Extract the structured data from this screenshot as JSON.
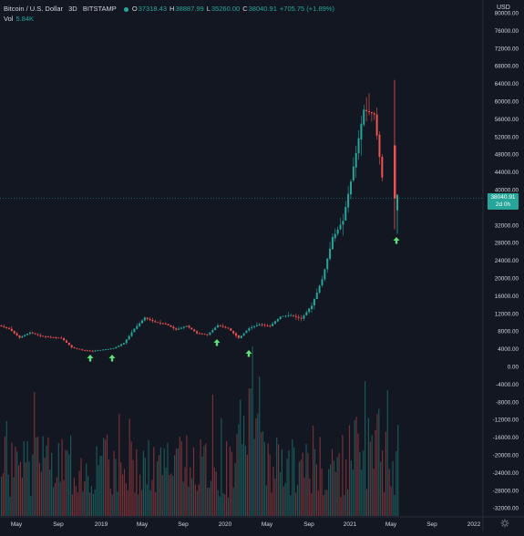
{
  "header": {
    "symbol": "Bitcoin / U.S. Dollar",
    "interval": "3D",
    "exchange": "BITSTAMP",
    "open_k": "O",
    "open_v": "37318.43",
    "high_k": "H",
    "high_v": "38887.99",
    "low_k": "L",
    "low_v": "35260.00",
    "close_k": "C",
    "close_v": "38040.91",
    "change": "+705.75 (+1.89%)"
  },
  "volume": {
    "label": "Vol",
    "value": "5.84K"
  },
  "axis": {
    "currency": "USD",
    "price_labels": [
      "80000.00",
      "76000.00",
      "72000.00",
      "68000.00",
      "64000.00",
      "60000.00",
      "56000.00",
      "52000.00",
      "48000.00",
      "44000.00",
      "40000.00",
      "36000.00",
      "32000.00",
      "28000.00",
      "24000.00",
      "20000.00",
      "16000.00",
      "12000.00",
      "8000.00",
      "4000.00",
      "0.00",
      "-4000.00",
      "-8000.00",
      "-12000.00",
      "-16000.00",
      "-20000.00",
      "-24000.00",
      "-28000.00",
      "-32000.00"
    ],
    "time_labels": [
      "May",
      "Sep",
      "2019",
      "May",
      "Sep",
      "2020",
      "May",
      "Sep",
      "2021",
      "May",
      "Sep",
      "2022"
    ],
    "last_price": "38040.91",
    "countdown": "2d 0h"
  },
  "colors": {
    "bg": "#131722",
    "up": "#26a69a",
    "down": "#ef5350",
    "text": "#d1d4dc",
    "arrow": "#5ee07a"
  },
  "chart_data": {
    "type": "candlestick",
    "x_labels": [
      "May",
      "Sep",
      "2019",
      "May",
      "Sep",
      "2020",
      "May",
      "Sep",
      "2021",
      "May",
      "Sep",
      "2022"
    ],
    "price_series": [
      [
        "2018-04",
        9300
      ],
      [
        "2018-05",
        8500
      ],
      [
        "2018-06",
        6500
      ],
      [
        "2018-07",
        7700
      ],
      [
        "2018-08",
        6900
      ],
      [
        "2018-09",
        6600
      ],
      [
        "2018-10",
        6400
      ],
      [
        "2018-11",
        4300
      ],
      [
        "2018-12",
        3700
      ],
      [
        "2019-01",
        3500
      ],
      [
        "2019-02",
        3800
      ],
      [
        "2019-03",
        4100
      ],
      [
        "2019-04",
        5300
      ],
      [
        "2019-05",
        8500
      ],
      [
        "2019-06",
        11000
      ],
      [
        "2019-07",
        10000
      ],
      [
        "2019-08",
        9600
      ],
      [
        "2019-09",
        8300
      ],
      [
        "2019-10",
        9200
      ],
      [
        "2019-11",
        7500
      ],
      [
        "2019-12",
        7200
      ],
      [
        "2020-01",
        9300
      ],
      [
        "2020-02",
        8600
      ],
      [
        "2020-03",
        6400
      ],
      [
        "2020-04",
        8700
      ],
      [
        "2020-05",
        9500
      ],
      [
        "2020-06",
        9100
      ],
      [
        "2020-07",
        11300
      ],
      [
        "2020-08",
        11600
      ],
      [
        "2020-09",
        10800
      ],
      [
        "2020-10",
        13800
      ],
      [
        "2020-11",
        19700
      ],
      [
        "2020-12",
        29000
      ],
      [
        "2021-01",
        33000
      ],
      [
        "2021-02",
        45000
      ],
      [
        "2021-03",
        58000
      ],
      [
        "2021-04",
        57000
      ],
      [
        "2021-05",
        38040
      ]
    ],
    "markers": [
      "2018-12",
      "2019-02",
      "2020-03 (early)",
      "2020-03",
      "2021-05"
    ],
    "y_range": [
      -32000,
      80000
    ]
  }
}
